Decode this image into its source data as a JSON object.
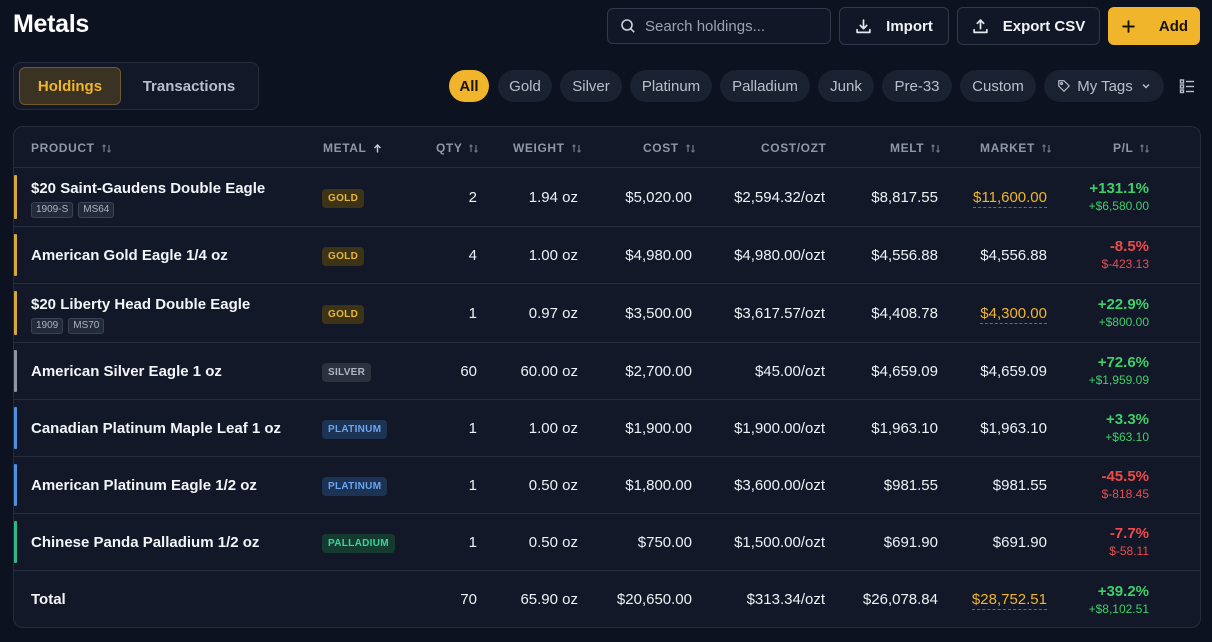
{
  "page": {
    "title": "Metals"
  },
  "toolbar": {
    "search_placeholder": "Search holdings...",
    "import_label": "Import",
    "export_label": "Export CSV",
    "add_label": "Add"
  },
  "view_tabs": [
    {
      "label": "Holdings",
      "active": true
    },
    {
      "label": "Transactions",
      "active": false
    }
  ],
  "filters": [
    {
      "label": "All",
      "active": true
    },
    {
      "label": "Gold"
    },
    {
      "label": "Silver"
    },
    {
      "label": "Platinum"
    },
    {
      "label": "Palladium"
    },
    {
      "label": "Junk"
    },
    {
      "label": "Pre-33"
    },
    {
      "label": "Custom"
    },
    {
      "label": "My Tags"
    }
  ],
  "columns": {
    "product": "PRODUCT",
    "metal": "METAL",
    "qty": "QTY",
    "weight": "WEIGHT",
    "cost": "COST",
    "cost_ozt": "COST/OZT",
    "melt": "MELT",
    "market": "MARKET",
    "pl": "P/L"
  },
  "rows": [
    {
      "name": "$20 Saint-Gaudens Double Eagle",
      "tags": [
        "1909-S",
        "MS64"
      ],
      "metal": "GOLD",
      "qty": "2",
      "weight": "1.94 oz",
      "cost": "$5,020.00",
      "cost_ozt": "$2,594.32/ozt",
      "melt": "$8,817.55",
      "market": "$11,600.00",
      "market_custom": true,
      "pl_pct": "+131.1%",
      "pl_amt": "+$6,580.00",
      "pl_positive": true
    },
    {
      "name": "American Gold Eagle 1/4 oz",
      "tags": [],
      "metal": "GOLD",
      "qty": "4",
      "weight": "1.00 oz",
      "cost": "$4,980.00",
      "cost_ozt": "$4,980.00/ozt",
      "melt": "$4,556.88",
      "market": "$4,556.88",
      "market_custom": false,
      "pl_pct": "-8.5%",
      "pl_amt": "$-423.13",
      "pl_positive": false
    },
    {
      "name": "$20 Liberty Head Double Eagle",
      "tags": [
        "1909",
        "MS70"
      ],
      "metal": "GOLD",
      "qty": "1",
      "weight": "0.97 oz",
      "cost": "$3,500.00",
      "cost_ozt": "$3,617.57/ozt",
      "melt": "$4,408.78",
      "market": "$4,300.00",
      "market_custom": true,
      "pl_pct": "+22.9%",
      "pl_amt": "+$800.00",
      "pl_positive": true
    },
    {
      "name": "American Silver Eagle 1 oz",
      "tags": [],
      "metal": "SILVER",
      "qty": "60",
      "weight": "60.00 oz",
      "cost": "$2,700.00",
      "cost_ozt": "$45.00/ozt",
      "melt": "$4,659.09",
      "market": "$4,659.09",
      "market_custom": false,
      "pl_pct": "+72.6%",
      "pl_amt": "+$1,959.09",
      "pl_positive": true
    },
    {
      "name": "Canadian Platinum Maple Leaf 1 oz",
      "tags": [],
      "metal": "PLATINUM",
      "qty": "1",
      "weight": "1.00 oz",
      "cost": "$1,900.00",
      "cost_ozt": "$1,900.00/ozt",
      "melt": "$1,963.10",
      "market": "$1,963.10",
      "market_custom": false,
      "pl_pct": "+3.3%",
      "pl_amt": "+$63.10",
      "pl_positive": true
    },
    {
      "name": "American Platinum Eagle 1/2 oz",
      "tags": [],
      "metal": "PLATINUM",
      "qty": "1",
      "weight": "0.50 oz",
      "cost": "$1,800.00",
      "cost_ozt": "$3,600.00/ozt",
      "melt": "$981.55",
      "market": "$981.55",
      "market_custom": false,
      "pl_pct": "-45.5%",
      "pl_amt": "$-818.45",
      "pl_positive": false
    },
    {
      "name": "Chinese Panda Palladium 1/2 oz",
      "tags": [],
      "metal": "PALLADIUM",
      "qty": "1",
      "weight": "0.50 oz",
      "cost": "$750.00",
      "cost_ozt": "$1,500.00/ozt",
      "melt": "$691.90",
      "market": "$691.90",
      "market_custom": false,
      "pl_pct": "-7.7%",
      "pl_amt": "$-58.11",
      "pl_positive": false
    }
  ],
  "total": {
    "label": "Total",
    "qty": "70",
    "weight": "65.90 oz",
    "cost": "$20,650.00",
    "cost_ozt": "$313.34/ozt",
    "melt": "$26,078.84",
    "market": "$28,752.51",
    "pl_pct": "+39.2%",
    "pl_amt": "+$8,102.51"
  },
  "metal_colors": {
    "GOLD": {
      "bar": "#d4a93a",
      "bg": "#3d3316",
      "fg": "#e7b542"
    },
    "SILVER": {
      "bar": "#8e96a3",
      "bg": "#2c323d",
      "fg": "#aeb6c3"
    },
    "PLATINUM": {
      "bar": "#4f8fe0",
      "bg": "#1c3354",
      "fg": "#6aa5f0"
    },
    "PALLADIUM": {
      "bar": "#2fb886",
      "bg": "#153a2f",
      "fg": "#3dd39a"
    }
  },
  "colors": {
    "accent": "#f0b52a",
    "positive": "#3ecf6a",
    "negative": "#ef4a4a"
  }
}
